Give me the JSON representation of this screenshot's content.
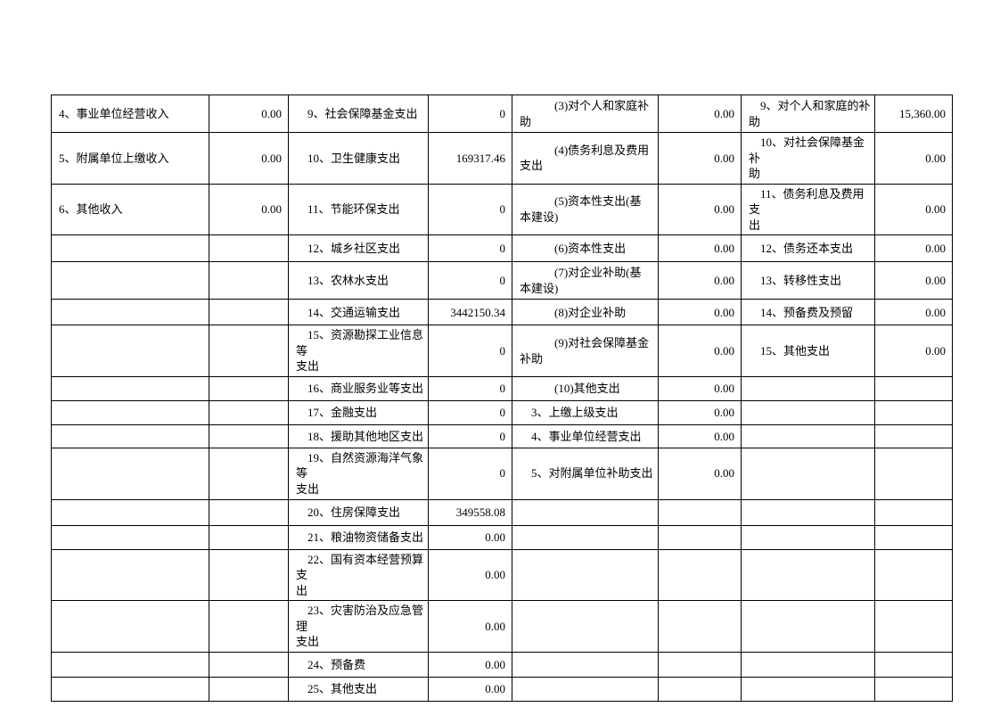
{
  "colors": {
    "page_background": "#ffffff",
    "table_border": "#000000",
    "text": "#000000"
  },
  "table": {
    "rows": [
      [
        "4、事业单位经营收入",
        "0.00",
        "　9、社会保障基金支出",
        "0",
        "　　　(3)对个人和家庭补\n助",
        "0.00",
        "　9、对个人和家庭的补助",
        "15,360.00"
      ],
      [
        "5、附属单位上缴收入",
        "0.00",
        "　10、卫生健康支出",
        "169317.46",
        "　　　(4)债务利息及费用\n支出",
        "0.00",
        "　10、对社会保障基金补\n助",
        "0.00"
      ],
      [
        "6、其他收入",
        "0.00",
        "　11、节能环保支出",
        "0",
        "　　　(5)资本性支出(基\n本建设)",
        "0.00",
        "　11、债务利息及费用支\n出",
        "0.00"
      ],
      [
        "",
        "",
        "　12、城乡社区支出",
        "0",
        "　　　(6)资本性支出",
        "0.00",
        "　12、债务还本支出",
        "0.00"
      ],
      [
        "",
        "",
        "　13、农林水支出",
        "0",
        "　　　(7)对企业补助(基\n本建设)",
        "0.00",
        "　13、转移性支出",
        "0.00"
      ],
      [
        "",
        "",
        "　14、交通运输支出",
        "3442150.34",
        "　　　(8)对企业补助",
        "0.00",
        "　14、预备费及预留",
        "0.00"
      ],
      [
        "",
        "",
        "　15、资源勘探工业信息等\n支出",
        "0",
        "　　　(9)对社会保障基金\n补助",
        "0.00",
        "　15、其他支出",
        "0.00"
      ],
      [
        "",
        "",
        "　16、商业服务业等支出",
        "0",
        "　　　(10)其他支出",
        "0.00",
        "",
        ""
      ],
      [
        "",
        "",
        "　17、金融支出",
        "0",
        "　3、上缴上级支出",
        "0.00",
        "",
        ""
      ],
      [
        "",
        "",
        "　18、援助其他地区支出",
        "0",
        "　4、事业单位经营支出",
        "0.00",
        "",
        ""
      ],
      [
        "",
        "",
        "　19、自然资源海洋气象等\n支出",
        "0",
        "　5、对附属单位补助支出",
        "0.00",
        "",
        ""
      ],
      [
        "",
        "",
        "　20、住房保障支出",
        "349558.08",
        "",
        "",
        "",
        ""
      ],
      [
        "",
        "",
        "　21、粮油物资储备支出",
        "0.00",
        "",
        "",
        "",
        ""
      ],
      [
        "",
        "",
        "　22、国有资本经营预算支\n出",
        "0.00",
        "",
        "",
        "",
        ""
      ],
      [
        "",
        "",
        "　23、灾害防治及应急管理\n支出",
        "0.00",
        "",
        "",
        "",
        ""
      ],
      [
        "",
        "",
        "　24、预备费",
        "0.00",
        "",
        "",
        "",
        ""
      ],
      [
        "",
        "",
        "　25、其他支出",
        "0.00",
        "",
        "",
        "",
        ""
      ]
    ]
  }
}
